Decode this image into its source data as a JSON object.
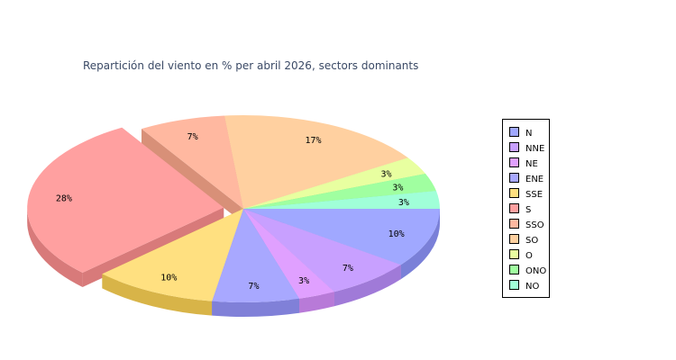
{
  "chart_data": {
    "type": "pie",
    "title": "Repartición del viento en % per abril 2026, sectors dominants",
    "categories": [
      "N",
      "NNE",
      "NE",
      "ENE",
      "SSE",
      "S",
      "SSO",
      "SO",
      "O",
      "ONO",
      "NO"
    ],
    "values": [
      10,
      7,
      3,
      7,
      10,
      28,
      7,
      17,
      3,
      3,
      3
    ],
    "value_labels": [
      "10%",
      "7%",
      "3%",
      "7%",
      "10%",
      "28%",
      "7%",
      "17%",
      "3%",
      "3%",
      "3%"
    ],
    "exploded": [
      "S"
    ],
    "style": "3d",
    "legend_position": "right",
    "colors": [
      "#a0a8ff",
      "#c8a0ff",
      "#e0a0ff",
      "#a8a8ff",
      "#ffe080",
      "#ffa0a0",
      "#ffb8a0",
      "#ffd0a0",
      "#e8ffa0",
      "#a0ffa0",
      "#a0ffd8"
    ],
    "side_colors": [
      "#7a80d8",
      "#a07ad8",
      "#b87ad8",
      "#8080d8",
      "#d8b448",
      "#d87a7a",
      "#d89078",
      "#d8a878",
      "#c0d878",
      "#78d878",
      "#78d8b0"
    ]
  }
}
